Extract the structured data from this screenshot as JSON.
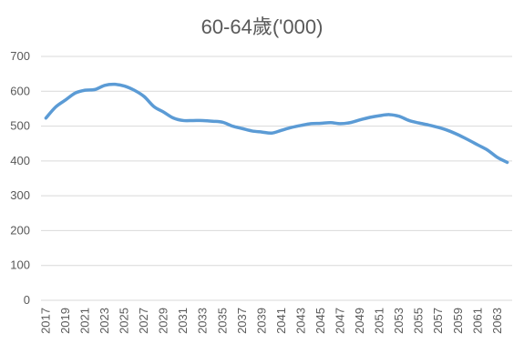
{
  "chart_data": {
    "type": "line",
    "title": "60-64歲('000)",
    "xlabel": "",
    "ylabel": "",
    "ylim": [
      0,
      700
    ],
    "yticks": [
      0,
      100,
      200,
      300,
      400,
      500,
      600,
      700
    ],
    "x": [
      2017,
      2018,
      2019,
      2020,
      2021,
      2022,
      2023,
      2024,
      2025,
      2026,
      2027,
      2028,
      2029,
      2030,
      2031,
      2032,
      2033,
      2034,
      2035,
      2036,
      2037,
      2038,
      2039,
      2040,
      2041,
      2042,
      2043,
      2044,
      2045,
      2046,
      2047,
      2048,
      2049,
      2050,
      2051,
      2052,
      2053,
      2054,
      2055,
      2056,
      2057,
      2058,
      2059,
      2060,
      2061,
      2062,
      2063,
      2064
    ],
    "xtick_labels": [
      "2017",
      "2019",
      "2021",
      "2023",
      "2025",
      "2027",
      "2029",
      "2031",
      "2033",
      "2035",
      "2037",
      "2039",
      "2041",
      "2043",
      "2045",
      "2047",
      "2049",
      "2051",
      "2053",
      "2055",
      "2057",
      "2059",
      "2061",
      "2063"
    ],
    "series": [
      {
        "values": [
          523,
          555,
          575,
          595,
          603,
          605,
          617,
          620,
          615,
          603,
          585,
          556,
          540,
          523,
          516,
          516,
          516,
          514,
          511,
          500,
          493,
          486,
          483,
          480,
          488,
          496,
          502,
          507,
          508,
          510,
          507,
          510,
          518,
          525,
          530,
          533,
          528,
          516,
          509,
          503,
          496,
          487,
          475,
          461,
          446,
          431,
          410,
          396
        ]
      }
    ],
    "colors": {
      "line": "#5b9bd5",
      "grid": "#d9d9d9",
      "text": "#595959"
    },
    "grid": true,
    "legend": "none"
  }
}
